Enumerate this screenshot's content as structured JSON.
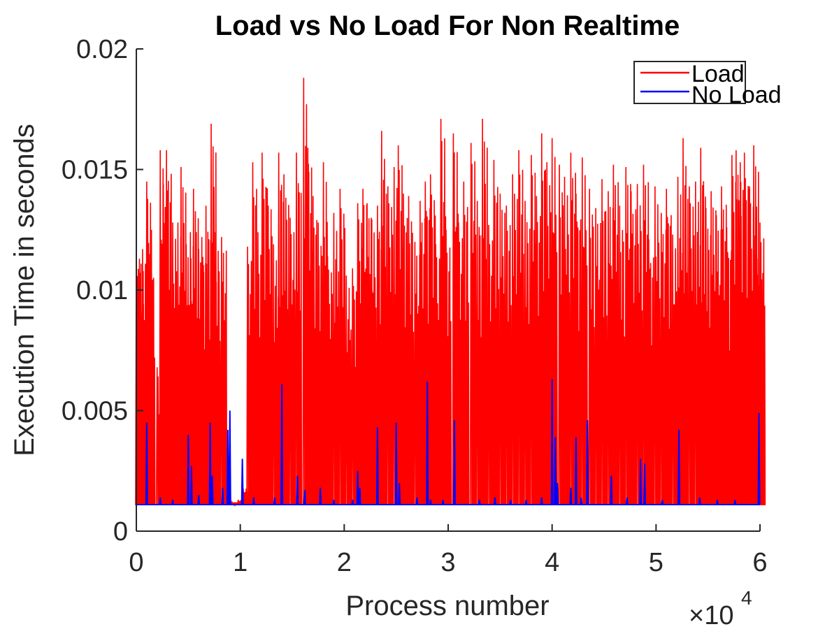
{
  "chart_data": {
    "type": "line",
    "title": "Load vs No Load For Non Realtime",
    "xlabel": "Process number",
    "ylabel": "Execution Time in seconds",
    "x_multiplier_label": "×10",
    "x_multiplier_exponent": "4",
    "xlim": [
      0,
      60000
    ],
    "ylim": [
      0,
      0.02
    ],
    "x_ticks": [
      0,
      10000,
      20000,
      30000,
      40000,
      50000,
      60000
    ],
    "x_tick_labels": [
      "0",
      "1",
      "2",
      "3",
      "4",
      "5",
      "6"
    ],
    "y_ticks": [
      0,
      0.005,
      0.01,
      0.015,
      0.02
    ],
    "y_tick_labels": [
      "0",
      "0.005",
      "0.01",
      "0.015",
      "0.02"
    ],
    "grid": false,
    "legend_position": "top-right",
    "baseline": 0.0011,
    "series": [
      {
        "name": "Load",
        "color": "#ff0000",
        "peaks": [
          [
            0,
            0.0118
          ],
          [
            300,
            0.0113
          ],
          [
            600,
            0.0117
          ],
          [
            1000,
            0.0145
          ],
          [
            1300,
            0.0115
          ],
          [
            2000,
            0.0068
          ],
          [
            2300,
            0.0158
          ],
          [
            2600,
            0.0144
          ],
          [
            2900,
            0.0158
          ],
          [
            3300,
            0.0105
          ],
          [
            3500,
            0.0128
          ],
          [
            4000,
            0.0128
          ],
          [
            4300,
            0.0151
          ],
          [
            4800,
            0.0119
          ],
          [
            5200,
            0.0124
          ],
          [
            5500,
            0.0142
          ],
          [
            6000,
            0.0117
          ],
          [
            6300,
            0.0122
          ],
          [
            6700,
            0.0135
          ],
          [
            7200,
            0.0169
          ],
          [
            7600,
            0.0124
          ],
          [
            8200,
            0.0122
          ],
          [
            8600,
            0.0014
          ],
          [
            9200,
            0.0012
          ],
          [
            9800,
            0.0013
          ],
          [
            10200,
            0.0018
          ],
          [
            10700,
            0.0118
          ],
          [
            11200,
            0.0153
          ],
          [
            11700,
            0.0124
          ],
          [
            12100,
            0.0157
          ],
          [
            12600,
            0.0142
          ],
          [
            13200,
            0.0119
          ],
          [
            13700,
            0.0157
          ],
          [
            14200,
            0.0148
          ],
          [
            14800,
            0.013
          ],
          [
            15400,
            0.0157
          ],
          [
            16100,
            0.0188
          ],
          [
            16500,
            0.0159
          ],
          [
            17000,
            0.0139
          ],
          [
            17500,
            0.0128
          ],
          [
            18000,
            0.0153
          ],
          [
            18400,
            0.0114
          ],
          [
            19000,
            0.0132
          ],
          [
            19600,
            0.0142
          ],
          [
            20200,
            0.0106
          ],
          [
            20800,
            0.0109
          ],
          [
            21300,
            0.0136
          ],
          [
            21800,
            0.0142
          ],
          [
            22200,
            0.0136
          ],
          [
            22600,
            0.013
          ],
          [
            23200,
            0.0135
          ],
          [
            23600,
            0.0166
          ],
          [
            24200,
            0.0143
          ],
          [
            24800,
            0.0151
          ],
          [
            25200,
            0.016
          ],
          [
            25700,
            0.014
          ],
          [
            26200,
            0.0139
          ],
          [
            26800,
            0.012
          ],
          [
            27300,
            0.0137
          ],
          [
            27800,
            0.0145
          ],
          [
            28300,
            0.0148
          ],
          [
            28800,
            0.0119
          ],
          [
            29300,
            0.0171
          ],
          [
            29800,
            0.0125
          ],
          [
            30500,
            0.0165
          ],
          [
            31000,
            0.0128
          ],
          [
            31500,
            0.0145
          ],
          [
            32200,
            0.0161
          ],
          [
            32800,
            0.0137
          ],
          [
            33300,
            0.0171
          ],
          [
            33900,
            0.0127
          ],
          [
            34400,
            0.0154
          ],
          [
            35000,
            0.014
          ],
          [
            35600,
            0.0135
          ],
          [
            36200,
            0.0148
          ],
          [
            36800,
            0.0158
          ],
          [
            37400,
            0.0137
          ],
          [
            38000,
            0.0156
          ],
          [
            38500,
            0.0139
          ],
          [
            39000,
            0.0165
          ],
          [
            39500,
            0.0153
          ],
          [
            40000,
            0.0163
          ],
          [
            40700,
            0.0152
          ],
          [
            41200,
            0.0147
          ],
          [
            41800,
            0.0157
          ],
          [
            42300,
            0.014
          ],
          [
            42900,
            0.0155
          ],
          [
            43600,
            0.0142
          ],
          [
            44200,
            0.0134
          ],
          [
            44800,
            0.0146
          ],
          [
            45400,
            0.0141
          ],
          [
            45900,
            0.0152
          ],
          [
            46500,
            0.0135
          ],
          [
            47100,
            0.0151
          ],
          [
            47600,
            0.0141
          ],
          [
            48200,
            0.0144
          ],
          [
            48800,
            0.0152
          ],
          [
            49300,
            0.0121
          ],
          [
            49900,
            0.0143
          ],
          [
            50500,
            0.0132
          ],
          [
            51000,
            0.0142
          ],
          [
            51600,
            0.0123
          ],
          [
            52100,
            0.0147
          ],
          [
            52600,
            0.0163
          ],
          [
            53200,
            0.0143
          ],
          [
            53800,
            0.0145
          ],
          [
            54300,
            0.0159
          ],
          [
            54800,
            0.0134
          ],
          [
            55300,
            0.0141
          ],
          [
            55800,
            0.0131
          ],
          [
            56300,
            0.0143
          ],
          [
            56800,
            0.0126
          ],
          [
            57300,
            0.0156
          ],
          [
            57700,
            0.0158
          ],
          [
            58100,
            0.0153
          ],
          [
            58500,
            0.0157
          ],
          [
            59000,
            0.0143
          ],
          [
            59400,
            0.016
          ],
          [
            59700,
            0.0113
          ],
          [
            60000,
            0.0128
          ]
        ]
      },
      {
        "name": "No Load",
        "color": "#0000ff",
        "peaks": [
          [
            1000,
            0.0045
          ],
          [
            2300,
            0.0014
          ],
          [
            3500,
            0.0013
          ],
          [
            5000,
            0.004
          ],
          [
            5300,
            0.0027
          ],
          [
            6000,
            0.0015
          ],
          [
            7100,
            0.0045
          ],
          [
            7300,
            0.0023
          ],
          [
            8300,
            0.0018
          ],
          [
            8800,
            0.0042
          ],
          [
            9000,
            0.005
          ],
          [
            10200,
            0.003
          ],
          [
            11300,
            0.0014
          ],
          [
            13300,
            0.0014
          ],
          [
            14000,
            0.0061
          ],
          [
            15500,
            0.0023
          ],
          [
            16200,
            0.0017
          ],
          [
            17700,
            0.0018
          ],
          [
            19000,
            0.0013
          ],
          [
            20800,
            0.0013
          ],
          [
            21300,
            0.0025
          ],
          [
            21500,
            0.0018
          ],
          [
            23200,
            0.0043
          ],
          [
            25000,
            0.0045
          ],
          [
            25300,
            0.002
          ],
          [
            27000,
            0.0014
          ],
          [
            28000,
            0.0062
          ],
          [
            28300,
            0.0013
          ],
          [
            29500,
            0.0013
          ],
          [
            30600,
            0.0046
          ],
          [
            33000,
            0.0013
          ],
          [
            34500,
            0.0014
          ],
          [
            36000,
            0.0013
          ],
          [
            37500,
            0.0013
          ],
          [
            39000,
            0.0014
          ],
          [
            40000,
            0.0063
          ],
          [
            40300,
            0.0039
          ],
          [
            40500,
            0.002
          ],
          [
            41800,
            0.0018
          ],
          [
            42300,
            0.0039
          ],
          [
            42800,
            0.0014
          ],
          [
            43400,
            0.0046
          ],
          [
            45700,
            0.0023
          ],
          [
            47200,
            0.0014
          ],
          [
            48500,
            0.003
          ],
          [
            48900,
            0.0028
          ],
          [
            50600,
            0.0013
          ],
          [
            52200,
            0.0042
          ],
          [
            54200,
            0.0014
          ],
          [
            55900,
            0.0013
          ],
          [
            57600,
            0.0013
          ],
          [
            59900,
            0.0049
          ]
        ]
      }
    ]
  }
}
